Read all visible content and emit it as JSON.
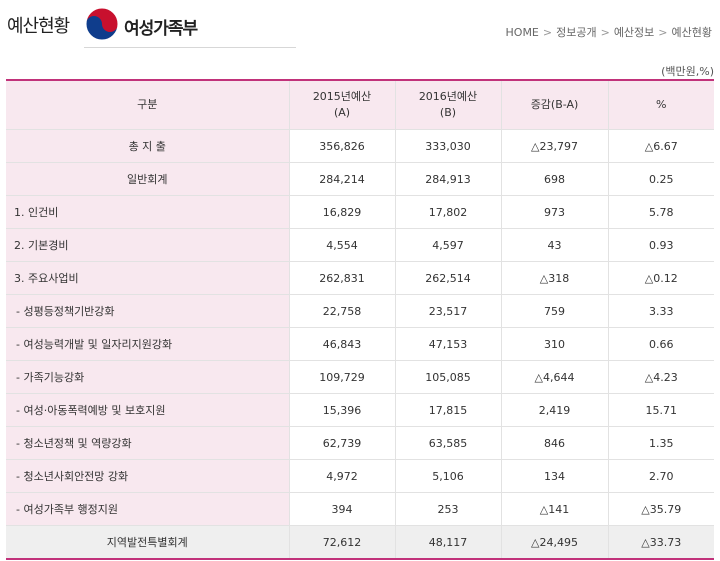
{
  "header": {
    "page_heading": "예산현황",
    "ministry_name": "여성가족부",
    "breadcrumb": [
      "HOME",
      "정보공개",
      "예산정보",
      "예산현황"
    ]
  },
  "unit_note": "(백만원,%)",
  "table": {
    "headers": [
      {
        "line1": "구분",
        "line2": ""
      },
      {
        "line1": "2015년예산",
        "line2": "(A)"
      },
      {
        "line1": "2016년예산",
        "line2": "(B)"
      },
      {
        "line1": "증감(B-A)",
        "line2": ""
      },
      {
        "line1": "%",
        "line2": ""
      }
    ],
    "rows": [
      {
        "label": "총 지 출",
        "v2015": "356,826",
        "v2016": "333,030",
        "diff": "△23,797",
        "pct": "△6.67"
      },
      {
        "label": "일반회계",
        "v2015": "284,214",
        "v2016": "284,913",
        "diff": "698",
        "pct": "0.25"
      },
      {
        "label": "1. 인건비",
        "v2015": "16,829",
        "v2016": "17,802",
        "diff": "973",
        "pct": "5.78"
      },
      {
        "label": "2. 기본경비",
        "v2015": "4,554",
        "v2016": "4,597",
        "diff": "43",
        "pct": "0.93"
      },
      {
        "label": "3. 주요사업비",
        "v2015": "262,831",
        "v2016": "262,514",
        "diff": "△318",
        "pct": "△0.12"
      },
      {
        "label": "- 성평등정책기반강화",
        "v2015": "22,758",
        "v2016": "23,517",
        "diff": "759",
        "pct": "3.33"
      },
      {
        "label": "- 여성능력개발 및 일자리지원강화",
        "v2015": "46,843",
        "v2016": "47,153",
        "diff": "310",
        "pct": "0.66"
      },
      {
        "label": "- 가족기능강화",
        "v2015": "109,729",
        "v2016": "105,085",
        "diff": "△4,644",
        "pct": "△4.23"
      },
      {
        "label": "- 여성·아동폭력예방 및 보호지원",
        "v2015": "15,396",
        "v2016": "17,815",
        "diff": "2,419",
        "pct": "15.71"
      },
      {
        "label": "- 청소년정책 및 역량강화",
        "v2015": "62,739",
        "v2016": "63,585",
        "diff": "846",
        "pct": "1.35"
      },
      {
        "label": "- 청소년사회안전망 강화",
        "v2015": "4,972",
        "v2016": "5,106",
        "diff": "134",
        "pct": "2.70"
      },
      {
        "label": "- 여성가족부 행정지원",
        "v2015": "394",
        "v2016": "253",
        "diff": "△141",
        "pct": "△35.79"
      },
      {
        "label": "지역발전특별회계",
        "v2015": "72,612",
        "v2016": "48,117",
        "diff": "△24,495",
        "pct": "△33.73"
      }
    ]
  },
  "colors": {
    "accent": "#c1327a",
    "header_bg": "#f8e8ef",
    "emblem_red": "#c8102e",
    "emblem_blue": "#0f3d8c"
  }
}
